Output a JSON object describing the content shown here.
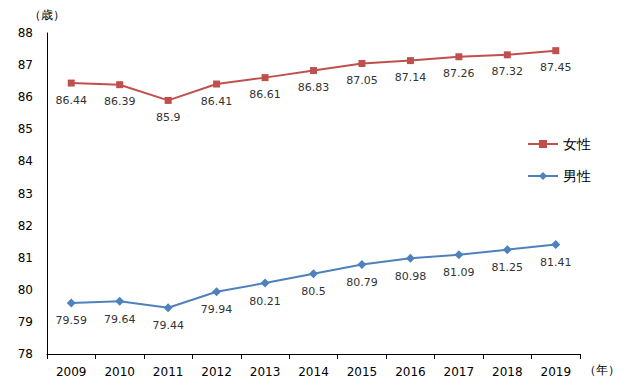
{
  "chart_data": {
    "type": "line",
    "ylabel": "（歳）",
    "xlabel": "（年）",
    "categories": [
      "2009",
      "2010",
      "2011",
      "2012",
      "2013",
      "2014",
      "2015",
      "2016",
      "2017",
      "2018",
      "2019"
    ],
    "series": [
      {
        "name": "女性",
        "color": "#c0504d",
        "marker": "square",
        "values": [
          86.44,
          86.39,
          85.9,
          86.41,
          86.61,
          86.83,
          87.05,
          87.14,
          87.26,
          87.32,
          87.45
        ]
      },
      {
        "name": "男性",
        "color": "#4f81bd",
        "marker": "diamond",
        "values": [
          79.59,
          79.64,
          79.44,
          79.94,
          80.21,
          80.5,
          80.79,
          80.98,
          81.09,
          81.25,
          81.41
        ]
      }
    ],
    "ylim": [
      78,
      88
    ],
    "yticks": [
      78,
      79,
      80,
      81,
      82,
      83,
      84,
      85,
      86,
      87,
      88
    ],
    "grid": false,
    "legend": "right",
    "data_labels": true
  }
}
